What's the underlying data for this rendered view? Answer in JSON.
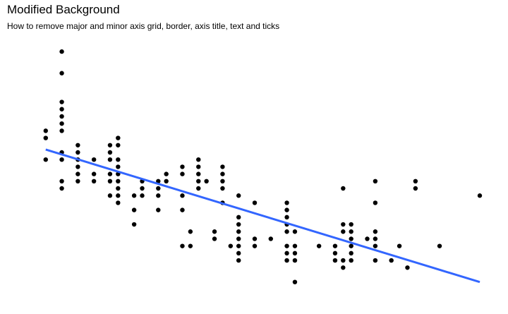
{
  "chart_data": {
    "type": "scatter",
    "title": "Modified Background",
    "subtitle": "How to remove major and minor axis grid, border, axis title, text and ticks",
    "xlabel": "",
    "ylabel": "",
    "xlim": [
      1.4,
      7.0
    ],
    "ylim": [
      10.5,
      44.5
    ],
    "grid": false,
    "axes_visible": false,
    "point_color": "#000000",
    "line_color": "#3366FF",
    "trend_line": {
      "method": "linear",
      "x": [
        1.6,
        7.0
      ],
      "y": [
        30.4,
        12.0
      ]
    },
    "points": [
      [
        1.6,
        33
      ],
      [
        1.6,
        32
      ],
      [
        1.6,
        29
      ],
      [
        1.8,
        44
      ],
      [
        1.8,
        41
      ],
      [
        1.8,
        37
      ],
      [
        1.8,
        36
      ],
      [
        1.8,
        35
      ],
      [
        1.8,
        34
      ],
      [
        1.8,
        33
      ],
      [
        1.8,
        30
      ],
      [
        1.8,
        29
      ],
      [
        1.8,
        26
      ],
      [
        1.8,
        25
      ],
      [
        2.0,
        31
      ],
      [
        2.0,
        30
      ],
      [
        2.0,
        29
      ],
      [
        2.0,
        28
      ],
      [
        2.0,
        27
      ],
      [
        2.0,
        26
      ],
      [
        2.2,
        29
      ],
      [
        2.2,
        27
      ],
      [
        2.2,
        26
      ],
      [
        2.4,
        31
      ],
      [
        2.4,
        30
      ],
      [
        2.4,
        29
      ],
      [
        2.4,
        27
      ],
      [
        2.4,
        26
      ],
      [
        2.4,
        24
      ],
      [
        2.5,
        32
      ],
      [
        2.5,
        31
      ],
      [
        2.5,
        29
      ],
      [
        2.5,
        28
      ],
      [
        2.5,
        27
      ],
      [
        2.5,
        26
      ],
      [
        2.5,
        25
      ],
      [
        2.5,
        24
      ],
      [
        2.5,
        23
      ],
      [
        2.7,
        24
      ],
      [
        2.7,
        22
      ],
      [
        2.7,
        20
      ],
      [
        2.8,
        26
      ],
      [
        2.8,
        25
      ],
      [
        2.8,
        24
      ],
      [
        3.0,
        26
      ],
      [
        3.0,
        25
      ],
      [
        3.0,
        24
      ],
      [
        3.0,
        22
      ],
      [
        3.1,
        27
      ],
      [
        3.1,
        26
      ],
      [
        3.3,
        28
      ],
      [
        3.3,
        27
      ],
      [
        3.3,
        24
      ],
      [
        3.3,
        22
      ],
      [
        3.3,
        17
      ],
      [
        3.4,
        19
      ],
      [
        3.4,
        17
      ],
      [
        3.5,
        29
      ],
      [
        3.5,
        28
      ],
      [
        3.5,
        27
      ],
      [
        3.5,
        26
      ],
      [
        3.5,
        25
      ],
      [
        3.6,
        26
      ],
      [
        3.7,
        19
      ],
      [
        3.7,
        18
      ],
      [
        3.8,
        28
      ],
      [
        3.8,
        27
      ],
      [
        3.8,
        26
      ],
      [
        3.8,
        25
      ],
      [
        3.8,
        23
      ],
      [
        3.9,
        17
      ],
      [
        4.0,
        24
      ],
      [
        4.0,
        21
      ],
      [
        4.0,
        20
      ],
      [
        4.0,
        19
      ],
      [
        4.0,
        18
      ],
      [
        4.0,
        17
      ],
      [
        4.0,
        16
      ],
      [
        4.0,
        15
      ],
      [
        4.2,
        23
      ],
      [
        4.2,
        18
      ],
      [
        4.2,
        17
      ],
      [
        4.4,
        18
      ],
      [
        4.6,
        23
      ],
      [
        4.6,
        22
      ],
      [
        4.6,
        21
      ],
      [
        4.6,
        20
      ],
      [
        4.6,
        19
      ],
      [
        4.6,
        17
      ],
      [
        4.6,
        16
      ],
      [
        4.6,
        15
      ],
      [
        4.7,
        19
      ],
      [
        4.7,
        17
      ],
      [
        4.7,
        16
      ],
      [
        4.7,
        15
      ],
      [
        4.7,
        12
      ],
      [
        5.0,
        17
      ],
      [
        5.2,
        17
      ],
      [
        5.2,
        16
      ],
      [
        5.2,
        15
      ],
      [
        5.3,
        25
      ],
      [
        5.3,
        20
      ],
      [
        5.3,
        19
      ],
      [
        5.3,
        15
      ],
      [
        5.3,
        14
      ],
      [
        5.4,
        20
      ],
      [
        5.4,
        19
      ],
      [
        5.4,
        18
      ],
      [
        5.4,
        17
      ],
      [
        5.4,
        16
      ],
      [
        5.4,
        15
      ],
      [
        5.6,
        18
      ],
      [
        5.7,
        26
      ],
      [
        5.7,
        23
      ],
      [
        5.7,
        19
      ],
      [
        5.7,
        18
      ],
      [
        5.7,
        17
      ],
      [
        5.7,
        15
      ],
      [
        5.9,
        15
      ],
      [
        6.0,
        17
      ],
      [
        6.1,
        14
      ],
      [
        6.2,
        26
      ],
      [
        6.2,
        25
      ],
      [
        6.5,
        17
      ],
      [
        7.0,
        24
      ]
    ]
  }
}
